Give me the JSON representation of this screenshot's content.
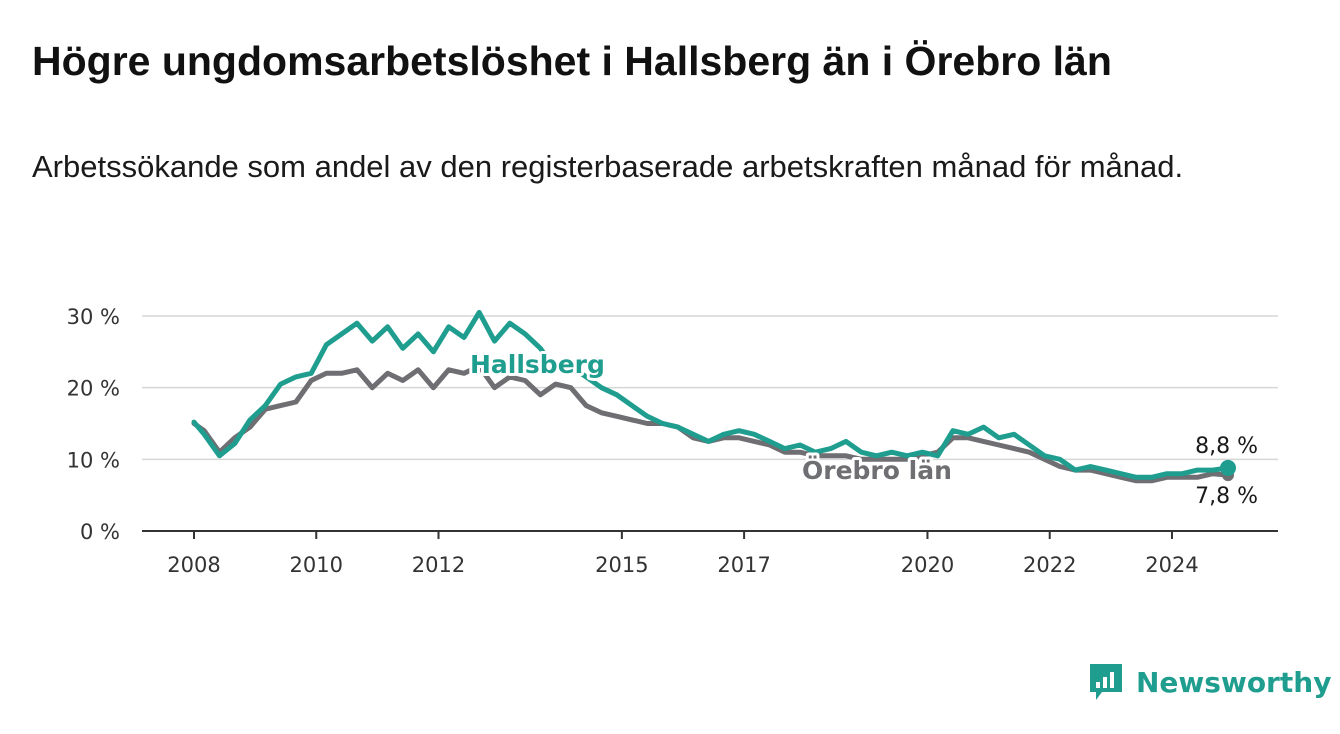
{
  "header": {
    "title": "Högre ungdomsarbetslöshet i Hallsberg än i Örebro län",
    "subtitle": "Arbetssökande som andel av den registerbaserade arbetskraften månad för månad."
  },
  "brand": {
    "name": "Newsworthy",
    "color": "#1f9e8f"
  },
  "chart_data": {
    "type": "line",
    "title": "",
    "xlabel": "",
    "ylabel": "",
    "ylim": [
      0,
      30
    ],
    "xlim": [
      "2008-01",
      "2024-12"
    ],
    "yticks": [
      0,
      10,
      20,
      30
    ],
    "ytick_labels": [
      "0 %",
      "10 %",
      "20 %",
      "30 %"
    ],
    "xticks": [
      2008,
      2010,
      2012,
      2015,
      2017,
      2020,
      2022,
      2024
    ],
    "xtick_labels": [
      "2008",
      "2010",
      "2012",
      "2015",
      "2017",
      "2020",
      "2022",
      "2024"
    ],
    "grid": "horizontal",
    "series": [
      {
        "name": "Hallsberg",
        "color": "#1f9e8f",
        "end_label": "8,8 %",
        "points": [
          [
            "2008-01",
            15.2
          ],
          [
            "2008-03",
            13.5
          ],
          [
            "2008-06",
            10.5
          ],
          [
            "2008-09",
            12.2
          ],
          [
            "2008-12",
            15.5
          ],
          [
            "2009-03",
            17.5
          ],
          [
            "2009-06",
            20.5
          ],
          [
            "2009-09",
            21.5
          ],
          [
            "2009-12",
            22.0
          ],
          [
            "2010-03",
            26.0
          ],
          [
            "2010-06",
            27.5
          ],
          [
            "2010-09",
            29.0
          ],
          [
            "2010-12",
            26.5
          ],
          [
            "2011-03",
            28.5
          ],
          [
            "2011-06",
            25.5
          ],
          [
            "2011-09",
            27.5
          ],
          [
            "2011-12",
            25.0
          ],
          [
            "2012-03",
            28.5
          ],
          [
            "2012-06",
            27.0
          ],
          [
            "2012-09",
            30.5
          ],
          [
            "2012-12",
            26.5
          ],
          [
            "2013-03",
            29.0
          ],
          [
            "2013-06",
            27.5
          ],
          [
            "2013-09",
            25.5
          ],
          [
            "2013-12",
            22.5
          ],
          [
            "2014-03",
            23.0
          ],
          [
            "2014-06",
            21.5
          ],
          [
            "2014-09",
            20.0
          ],
          [
            "2014-12",
            19.0
          ],
          [
            "2015-03",
            17.5
          ],
          [
            "2015-06",
            16.0
          ],
          [
            "2015-09",
            15.0
          ],
          [
            "2015-12",
            14.5
          ],
          [
            "2016-03",
            13.5
          ],
          [
            "2016-06",
            12.5
          ],
          [
            "2016-09",
            13.5
          ],
          [
            "2016-12",
            14.0
          ],
          [
            "2017-03",
            13.5
          ],
          [
            "2017-06",
            12.5
          ],
          [
            "2017-09",
            11.5
          ],
          [
            "2017-12",
            12.0
          ],
          [
            "2018-03",
            11.0
          ],
          [
            "2018-06",
            11.5
          ],
          [
            "2018-09",
            12.5
          ],
          [
            "2018-12",
            11.0
          ],
          [
            "2019-03",
            10.5
          ],
          [
            "2019-06",
            11.0
          ],
          [
            "2019-09",
            10.5
          ],
          [
            "2019-12",
            11.0
          ],
          [
            "2020-03",
            10.5
          ],
          [
            "2020-06",
            14.0
          ],
          [
            "2020-09",
            13.5
          ],
          [
            "2020-12",
            14.5
          ],
          [
            "2021-03",
            13.0
          ],
          [
            "2021-06",
            13.5
          ],
          [
            "2021-09",
            12.0
          ],
          [
            "2021-12",
            10.5
          ],
          [
            "2022-03",
            10.0
          ],
          [
            "2022-06",
            8.5
          ],
          [
            "2022-09",
            9.0
          ],
          [
            "2022-12",
            8.5
          ],
          [
            "2023-03",
            8.0
          ],
          [
            "2023-06",
            7.5
          ],
          [
            "2023-09",
            7.5
          ],
          [
            "2023-12",
            8.0
          ],
          [
            "2024-03",
            8.0
          ],
          [
            "2024-06",
            8.5
          ],
          [
            "2024-09",
            8.5
          ],
          [
            "2024-12",
            8.8
          ]
        ]
      },
      {
        "name": "Örebro län",
        "color": "#6e6e73",
        "end_label": "7,8 %",
        "points": [
          [
            "2008-01",
            15.0
          ],
          [
            "2008-03",
            14.0
          ],
          [
            "2008-06",
            11.0
          ],
          [
            "2008-09",
            13.0
          ],
          [
            "2008-12",
            14.5
          ],
          [
            "2009-03",
            17.0
          ],
          [
            "2009-06",
            17.5
          ],
          [
            "2009-09",
            18.0
          ],
          [
            "2009-12",
            21.0
          ],
          [
            "2010-03",
            22.0
          ],
          [
            "2010-06",
            22.0
          ],
          [
            "2010-09",
            22.5
          ],
          [
            "2010-12",
            20.0
          ],
          [
            "2011-03",
            22.0
          ],
          [
            "2011-06",
            21.0
          ],
          [
            "2011-09",
            22.5
          ],
          [
            "2011-12",
            20.0
          ],
          [
            "2012-03",
            22.5
          ],
          [
            "2012-06",
            22.0
          ],
          [
            "2012-09",
            23.0
          ],
          [
            "2012-12",
            20.0
          ],
          [
            "2013-03",
            21.5
          ],
          [
            "2013-06",
            21.0
          ],
          [
            "2013-09",
            19.0
          ],
          [
            "2013-12",
            20.5
          ],
          [
            "2014-03",
            20.0
          ],
          [
            "2014-06",
            17.5
          ],
          [
            "2014-09",
            16.5
          ],
          [
            "2014-12",
            16.0
          ],
          [
            "2015-03",
            15.5
          ],
          [
            "2015-06",
            15.0
          ],
          [
            "2015-09",
            15.0
          ],
          [
            "2015-12",
            14.5
          ],
          [
            "2016-03",
            13.0
          ],
          [
            "2016-06",
            12.5
          ],
          [
            "2016-09",
            13.0
          ],
          [
            "2016-12",
            13.0
          ],
          [
            "2017-03",
            12.5
          ],
          [
            "2017-06",
            12.0
          ],
          [
            "2017-09",
            11.0
          ],
          [
            "2017-12",
            11.0
          ],
          [
            "2018-03",
            10.5
          ],
          [
            "2018-06",
            10.5
          ],
          [
            "2018-09",
            10.5
          ],
          [
            "2018-12",
            10.0
          ],
          [
            "2019-03",
            10.0
          ],
          [
            "2019-06",
            10.0
          ],
          [
            "2019-09",
            10.0
          ],
          [
            "2019-12",
            10.5
          ],
          [
            "2020-03",
            11.0
          ],
          [
            "2020-06",
            13.0
          ],
          [
            "2020-09",
            13.0
          ],
          [
            "2020-12",
            12.5
          ],
          [
            "2021-03",
            12.0
          ],
          [
            "2021-06",
            11.5
          ],
          [
            "2021-09",
            11.0
          ],
          [
            "2021-12",
            10.0
          ],
          [
            "2022-03",
            9.0
          ],
          [
            "2022-06",
            8.5
          ],
          [
            "2022-09",
            8.5
          ],
          [
            "2022-12",
            8.0
          ],
          [
            "2023-03",
            7.5
          ],
          [
            "2023-06",
            7.0
          ],
          [
            "2023-09",
            7.0
          ],
          [
            "2023-12",
            7.5
          ],
          [
            "2024-03",
            7.5
          ],
          [
            "2024-06",
            7.5
          ],
          [
            "2024-09",
            8.0
          ],
          [
            "2024-12",
            7.8
          ]
        ]
      }
    ]
  }
}
